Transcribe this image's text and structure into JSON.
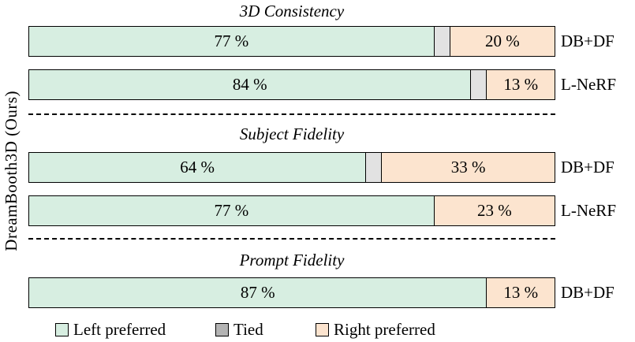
{
  "ylabel": "DreamBooth3D (Ours)",
  "legend": {
    "items": [
      {
        "label": "Left preferred",
        "color": "#d7eee1"
      },
      {
        "label": "Tied",
        "color": "#b4b4b4"
      },
      {
        "label": "Right preferred",
        "color": "#fce4cf"
      }
    ]
  },
  "chart_data": {
    "type": "bar",
    "variant": "horizontal_stacked_percent",
    "xlim": [
      0,
      100
    ],
    "row_axis_label": "DreamBooth3D (Ours)",
    "series_names": [
      "Left preferred",
      "Tied",
      "Right preferred"
    ],
    "segment_colors": {
      "left": "#d7eee1",
      "tied": "#e2e2e2",
      "right": "#fce4cf"
    },
    "groups": [
      {
        "title": "3D Consistency",
        "rows": [
          {
            "label": "DB+DF",
            "left_pct": 77,
            "tied_pct": 3,
            "right_pct": 20,
            "left_label": "77 %",
            "right_label": "20 %"
          },
          {
            "label": "L-NeRF",
            "left_pct": 84,
            "tied_pct": 3,
            "right_pct": 13,
            "left_label": "84 %",
            "right_label": "13 %"
          }
        ]
      },
      {
        "title": "Subject Fidelity",
        "rows": [
          {
            "label": "DB+DF",
            "left_pct": 64,
            "tied_pct": 3,
            "right_pct": 33,
            "left_label": "64 %",
            "right_label": "33 %"
          },
          {
            "label": "L-NeRF",
            "left_pct": 77,
            "tied_pct": 0,
            "right_pct": 23,
            "left_label": "77 %",
            "right_label": "23 %"
          }
        ]
      },
      {
        "title": "Prompt Fidelity",
        "rows": [
          {
            "label": "DB+DF",
            "left_pct": 87,
            "tied_pct": 0,
            "right_pct": 13,
            "left_label": "87 %",
            "right_label": "13 %"
          }
        ]
      }
    ]
  }
}
